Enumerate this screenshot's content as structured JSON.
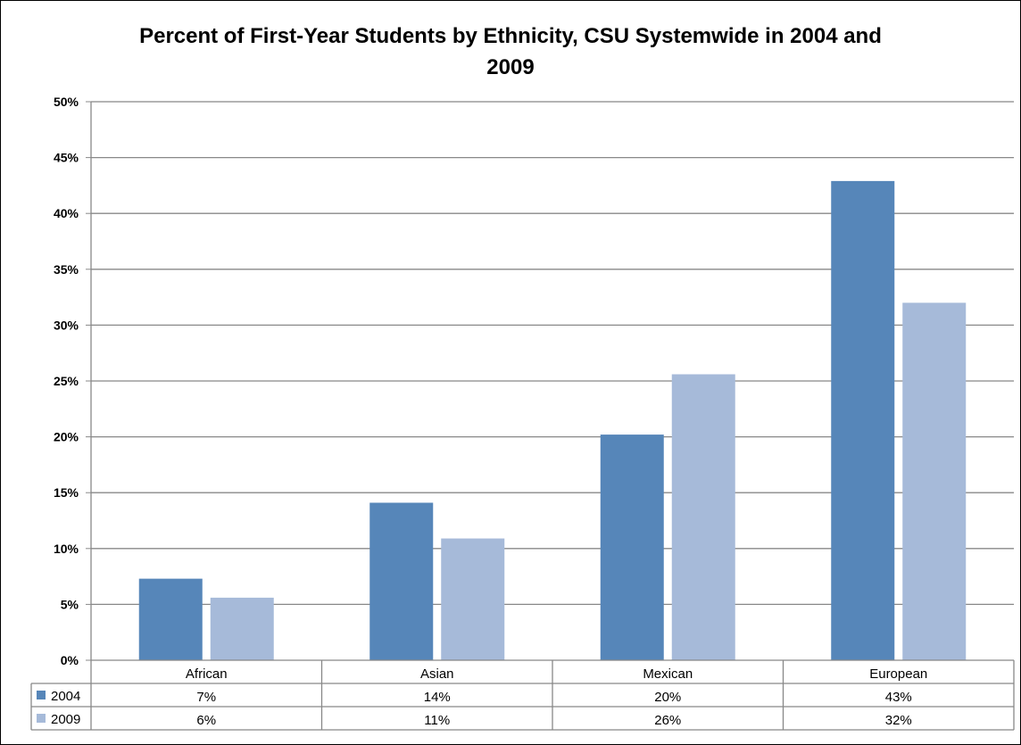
{
  "chart_data": {
    "type": "bar",
    "title_line1": "Percent of First-Year Students by Ethnicity, CSU Systemwide in 2004 and",
    "title_line2": "2009",
    "categories": [
      "African",
      "Asian",
      "Mexican",
      "European"
    ],
    "series": [
      {
        "name": "2004",
        "values": [
          7.3,
          14.1,
          20.2,
          42.9
        ],
        "labels": [
          "7%",
          "14%",
          "20%",
          "43%"
        ],
        "color": "#5686b9"
      },
      {
        "name": "2009",
        "values": [
          5.6,
          10.9,
          25.6,
          32.0
        ],
        "labels": [
          "6%",
          "11%",
          "26%",
          "32%"
        ],
        "color": "#a6bad9"
      }
    ],
    "ylim": [
      0,
      50
    ],
    "yticks": [
      "0%",
      "5%",
      "10%",
      "15%",
      "20%",
      "25%",
      "30%",
      "35%",
      "40%",
      "45%",
      "50%"
    ],
    "grid": true,
    "legend_placement": "data-table"
  }
}
